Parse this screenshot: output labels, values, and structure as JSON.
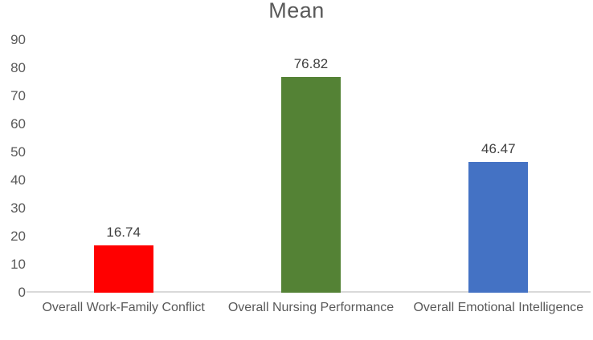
{
  "chart_data": {
    "type": "bar",
    "title": "Mean",
    "categories": [
      "Overall Work-Family Conflict",
      "Overall Nursing Performance",
      "Overall Emotional Intelligence"
    ],
    "values": [
      16.74,
      76.82,
      46.47
    ],
    "data_labels": [
      "16.74",
      "76.82",
      "46.47"
    ],
    "bar_colors": [
      "#FF0000",
      "#548235",
      "#4472C4"
    ],
    "xlabel": "",
    "ylabel": "",
    "ylim": [
      0,
      90
    ],
    "yticks": [
      0,
      10,
      20,
      30,
      40,
      50,
      60,
      70,
      80,
      90
    ],
    "grid": false,
    "legend": false,
    "colors": {
      "title_text": "#595959",
      "axis_tick_text": "#595959",
      "category_text": "#595959",
      "data_label_text": "#404040",
      "axis_line": "#d9d9d9",
      "background": "#ffffff"
    }
  }
}
